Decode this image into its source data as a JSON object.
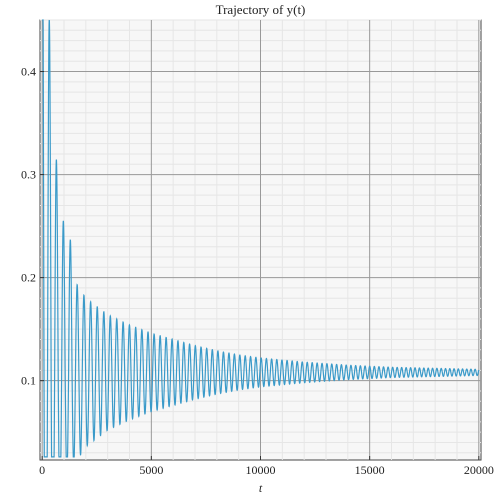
{
  "chart_data": {
    "type": "line",
    "title": "Trajectory of y(t)",
    "xlabel": "t",
    "ylabel": "",
    "xlim": [
      -100,
      20100
    ],
    "ylim": [
      0.023,
      0.45
    ],
    "x_ticks": [
      0,
      5000,
      10000,
      15000,
      20000
    ],
    "x_tick_labels": [
      "0",
      "5000",
      "10000",
      "15000",
      "20000"
    ],
    "y_ticks": [
      0.1,
      0.2,
      0.3,
      0.4
    ],
    "y_tick_labels": [
      "0.1",
      "0.2",
      "0.3",
      "0.4"
    ],
    "grid": true,
    "legend": "none",
    "series": [
      {
        "color": "#3a9ac9",
        "equilibrium": 0.108,
        "oscillation_period": 330,
        "envelope": [
          {
            "t": 0,
            "amplitude": 0.4
          },
          {
            "t": 250,
            "amplitude": 0.28
          },
          {
            "t": 600,
            "amplitude": 0.16
          },
          {
            "t": 1000,
            "amplitude": 0.105
          },
          {
            "t": 2000,
            "amplitude": 0.072
          },
          {
            "t": 3000,
            "amplitude": 0.056
          },
          {
            "t": 4000,
            "amplitude": 0.046
          },
          {
            "t": 5000,
            "amplitude": 0.038
          },
          {
            "t": 6000,
            "amplitude": 0.032
          },
          {
            "t": 7000,
            "amplitude": 0.026
          },
          {
            "t": 8000,
            "amplitude": 0.021
          },
          {
            "t": 9000,
            "amplitude": 0.017
          },
          {
            "t": 10000,
            "amplitude": 0.014
          },
          {
            "t": 12000,
            "amplitude": 0.01
          },
          {
            "t": 14000,
            "amplitude": 0.007
          },
          {
            "t": 16000,
            "amplitude": 0.005
          },
          {
            "t": 18000,
            "amplitude": 0.004
          },
          {
            "t": 20000,
            "amplitude": 0.003
          }
        ]
      }
    ]
  }
}
